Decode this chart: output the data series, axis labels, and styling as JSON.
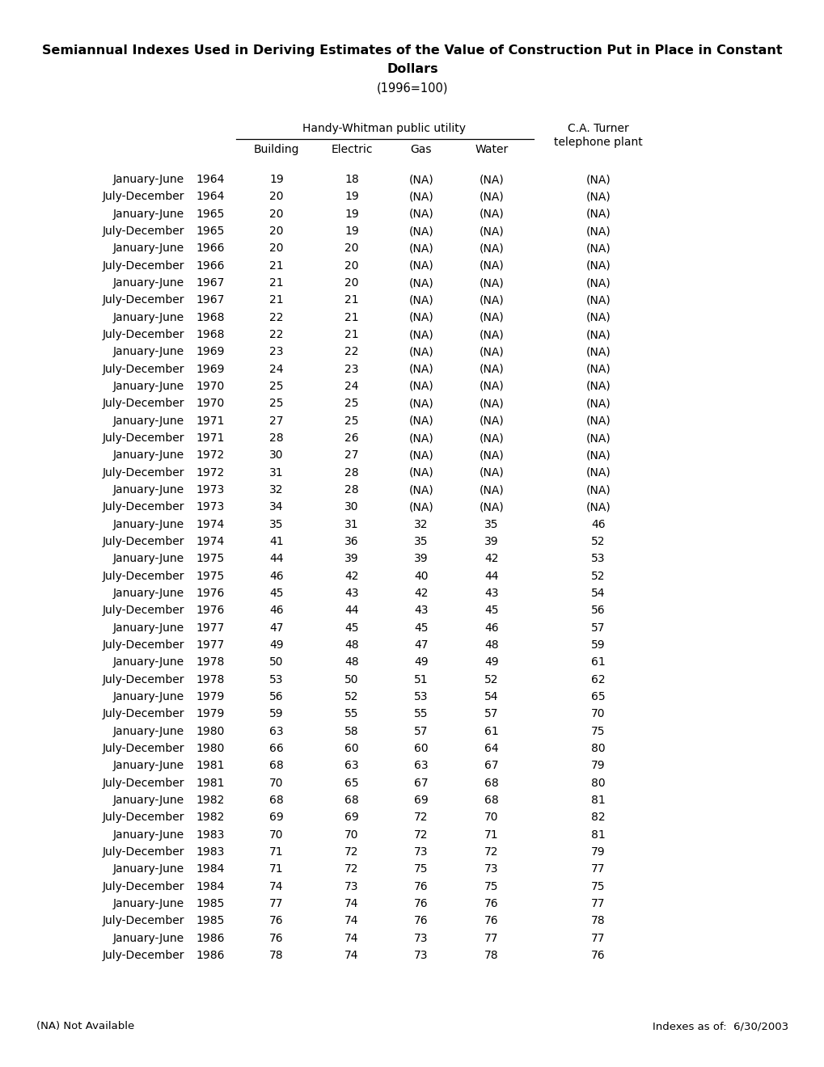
{
  "title_line1": "Semiannual Indexes Used in Deriving Estimates of the Value of Construction Put in Place in Constant",
  "title_line2": "Dollars",
  "title_line3": "(1996=100)",
  "header_group": "Handy-Whitman public utility",
  "header_col5": "C.A. Turner",
  "header_col5b": "telephone plant",
  "col_headers": [
    "Building",
    "Electric",
    "Gas",
    "Water"
  ],
  "footnote_left": "(NA) Not Available",
  "footnote_right": "Indexes as of:  6/30/2003",
  "rows": [
    [
      "January-June",
      "1964",
      "19",
      "18",
      "(NA)",
      "(NA)",
      "(NA)"
    ],
    [
      "July-December",
      "1964",
      "20",
      "19",
      "(NA)",
      "(NA)",
      "(NA)"
    ],
    [
      "January-June",
      "1965",
      "20",
      "19",
      "(NA)",
      "(NA)",
      "(NA)"
    ],
    [
      "July-December",
      "1965",
      "20",
      "19",
      "(NA)",
      "(NA)",
      "(NA)"
    ],
    [
      "January-June",
      "1966",
      "20",
      "20",
      "(NA)",
      "(NA)",
      "(NA)"
    ],
    [
      "July-December",
      "1966",
      "21",
      "20",
      "(NA)",
      "(NA)",
      "(NA)"
    ],
    [
      "January-June",
      "1967",
      "21",
      "20",
      "(NA)",
      "(NA)",
      "(NA)"
    ],
    [
      "July-December",
      "1967",
      "21",
      "21",
      "(NA)",
      "(NA)",
      "(NA)"
    ],
    [
      "January-June",
      "1968",
      "22",
      "21",
      "(NA)",
      "(NA)",
      "(NA)"
    ],
    [
      "July-December",
      "1968",
      "22",
      "21",
      "(NA)",
      "(NA)",
      "(NA)"
    ],
    [
      "January-June",
      "1969",
      "23",
      "22",
      "(NA)",
      "(NA)",
      "(NA)"
    ],
    [
      "July-December",
      "1969",
      "24",
      "23",
      "(NA)",
      "(NA)",
      "(NA)"
    ],
    [
      "January-June",
      "1970",
      "25",
      "24",
      "(NA)",
      "(NA)",
      "(NA)"
    ],
    [
      "July-December",
      "1970",
      "25",
      "25",
      "(NA)",
      "(NA)",
      "(NA)"
    ],
    [
      "January-June",
      "1971",
      "27",
      "25",
      "(NA)",
      "(NA)",
      "(NA)"
    ],
    [
      "July-December",
      "1971",
      "28",
      "26",
      "(NA)",
      "(NA)",
      "(NA)"
    ],
    [
      "January-June",
      "1972",
      "30",
      "27",
      "(NA)",
      "(NA)",
      "(NA)"
    ],
    [
      "July-December",
      "1972",
      "31",
      "28",
      "(NA)",
      "(NA)",
      "(NA)"
    ],
    [
      "January-June",
      "1973",
      "32",
      "28",
      "(NA)",
      "(NA)",
      "(NA)"
    ],
    [
      "July-December",
      "1973",
      "34",
      "30",
      "(NA)",
      "(NA)",
      "(NA)"
    ],
    [
      "January-June",
      "1974",
      "35",
      "31",
      "32",
      "35",
      "46"
    ],
    [
      "July-December",
      "1974",
      "41",
      "36",
      "35",
      "39",
      "52"
    ],
    [
      "January-June",
      "1975",
      "44",
      "39",
      "39",
      "42",
      "53"
    ],
    [
      "July-December",
      "1975",
      "46",
      "42",
      "40",
      "44",
      "52"
    ],
    [
      "January-June",
      "1976",
      "45",
      "43",
      "42",
      "43",
      "54"
    ],
    [
      "July-December",
      "1976",
      "46",
      "44",
      "43",
      "45",
      "56"
    ],
    [
      "January-June",
      "1977",
      "47",
      "45",
      "45",
      "46",
      "57"
    ],
    [
      "July-December",
      "1977",
      "49",
      "48",
      "47",
      "48",
      "59"
    ],
    [
      "January-June",
      "1978",
      "50",
      "48",
      "49",
      "49",
      "61"
    ],
    [
      "July-December",
      "1978",
      "53",
      "50",
      "51",
      "52",
      "62"
    ],
    [
      "January-June",
      "1979",
      "56",
      "52",
      "53",
      "54",
      "65"
    ],
    [
      "July-December",
      "1979",
      "59",
      "55",
      "55",
      "57",
      "70"
    ],
    [
      "January-June",
      "1980",
      "63",
      "58",
      "57",
      "61",
      "75"
    ],
    [
      "July-December",
      "1980",
      "66",
      "60",
      "60",
      "64",
      "80"
    ],
    [
      "January-June",
      "1981",
      "68",
      "63",
      "63",
      "67",
      "79"
    ],
    [
      "July-December",
      "1981",
      "70",
      "65",
      "67",
      "68",
      "80"
    ],
    [
      "January-June",
      "1982",
      "68",
      "68",
      "69",
      "68",
      "81"
    ],
    [
      "July-December",
      "1982",
      "69",
      "69",
      "72",
      "70",
      "82"
    ],
    [
      "January-June",
      "1983",
      "70",
      "70",
      "72",
      "71",
      "81"
    ],
    [
      "July-December",
      "1983",
      "71",
      "72",
      "73",
      "72",
      "79"
    ],
    [
      "January-June",
      "1984",
      "71",
      "72",
      "75",
      "73",
      "77"
    ],
    [
      "July-December",
      "1984",
      "74",
      "73",
      "76",
      "75",
      "75"
    ],
    [
      "January-June",
      "1985",
      "77",
      "74",
      "76",
      "76",
      "77"
    ],
    [
      "July-December",
      "1985",
      "76",
      "74",
      "76",
      "76",
      "78"
    ],
    [
      "January-June",
      "1986",
      "76",
      "74",
      "73",
      "77",
      "77"
    ],
    [
      "July-December",
      "1986",
      "78",
      "74",
      "73",
      "78",
      "76"
    ]
  ],
  "title_fs": 11.5,
  "subtitle_fs": 10.5,
  "header_fs": 10,
  "data_fs": 10,
  "footnote_fs": 9.5,
  "bg_color": "#ffffff"
}
